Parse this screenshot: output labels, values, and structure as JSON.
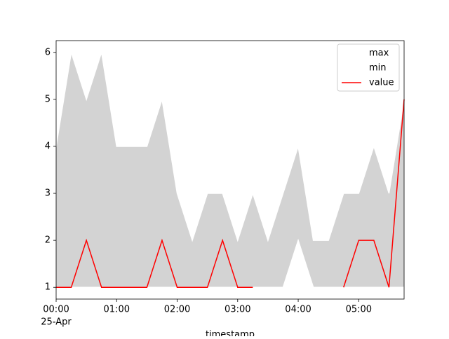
{
  "chart_data": {
    "type": "line",
    "x": [
      "00:00",
      "00:15",
      "00:30",
      "00:45",
      "01:00",
      "01:15",
      "01:30",
      "01:45",
      "02:00",
      "02:15",
      "02:30",
      "02:45",
      "03:00",
      "03:15",
      "03:30",
      "03:45",
      "04:00",
      "04:15",
      "04:30",
      "04:45",
      "05:00",
      "05:15",
      "05:30",
      "05:45"
    ],
    "xlim": [
      "00:00",
      "05:45"
    ],
    "xticks": [
      "00:00",
      "01:00",
      "02:00",
      "03:00",
      "04:00",
      "05:00"
    ],
    "xtick_sublabel": "25-Apr",
    "xlabel": "timestamp",
    "ylim": [
      0.75,
      6.25
    ],
    "yticks": [
      1,
      2,
      3,
      4,
      5,
      6
    ],
    "fill_color": "#d3d3d3",
    "legend": "upper right",
    "series": [
      {
        "name": "max",
        "color": "#ffffff",
        "values": [
          4,
          6,
          5,
          6,
          4,
          4,
          4,
          5,
          3,
          2,
          3,
          3,
          2,
          3,
          2,
          3,
          4,
          2,
          2,
          3,
          3,
          4,
          3,
          5
        ]
      },
      {
        "name": "min",
        "color": "#ffffff",
        "values": [
          1,
          1,
          1,
          1,
          1,
          1,
          1,
          1,
          1,
          1,
          1,
          1,
          1,
          1,
          1,
          1,
          2,
          1,
          1,
          1,
          1,
          1,
          1,
          1
        ]
      },
      {
        "name": "value",
        "color": "#ff0000",
        "values": [
          1,
          1,
          2,
          1,
          1,
          1,
          1,
          2,
          1,
          1,
          1,
          2,
          1,
          1,
          null,
          null,
          null,
          null,
          null,
          1,
          2,
          2,
          1,
          5
        ]
      }
    ]
  }
}
